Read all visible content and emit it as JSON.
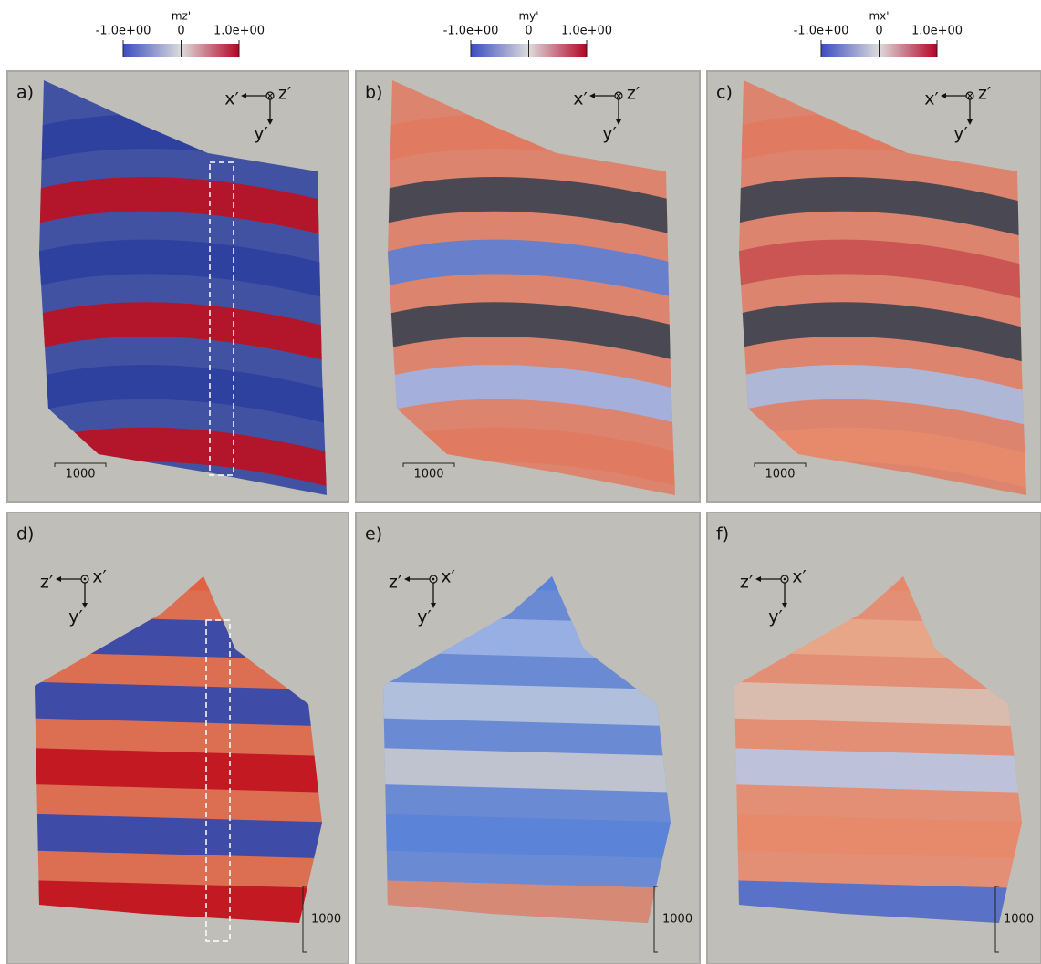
{
  "colorbars": [
    {
      "title": "mz'",
      "range": [
        -1,
        1
      ],
      "ticks": [
        {
          "value": -1,
          "label": "-1.0e+00"
        },
        0,
        {
          "value": 1,
          "label": "1.0e+00"
        }
      ]
    },
    {
      "title": "my'",
      "range": [
        -1,
        1
      ],
      "ticks": [
        {
          "value": -1,
          "label": "-1.0e+00"
        },
        0,
        {
          "value": 1,
          "label": "1.0e+00"
        }
      ]
    },
    {
      "title": "mx'",
      "range": [
        -1,
        1
      ],
      "ticks": [
        {
          "value": -1,
          "label": "-1.0e+00"
        },
        0,
        {
          "value": 1,
          "label": "1.0e+00"
        }
      ]
    }
  ],
  "panels": [
    {
      "label": "a)",
      "axis_left": "x′",
      "axis_out": "z′",
      "axis_down": "y′",
      "scale": "1000"
    },
    {
      "label": "b)",
      "axis_left": "x′",
      "axis_out": "z′",
      "axis_down": "y′",
      "scale": "1000"
    },
    {
      "label": "c)",
      "axis_left": "x′",
      "axis_out": "z′",
      "axis_down": "y′",
      "scale": "1000"
    },
    {
      "label": "d)",
      "axis_left": "z′",
      "axis_out": "x′",
      "axis_down": "y′",
      "scale": "1000"
    },
    {
      "label": "e)",
      "axis_left": "z′",
      "axis_out": "x′",
      "axis_down": "y′",
      "scale": "1000"
    },
    {
      "label": "f)",
      "axis_left": "z′",
      "axis_out": "x′",
      "axis_down": "y′",
      "scale": "1000"
    }
  ]
}
